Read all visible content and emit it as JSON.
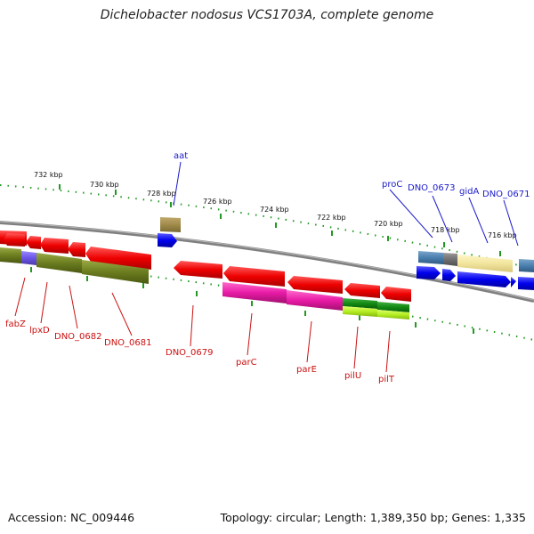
{
  "title": "Dichelobacter nodosus VCS1703A, complete genome",
  "footer": {
    "accession": "Accession: NC_009446",
    "summary": "Topology: circular; Length: 1,389,350 bp; Genes: 1,335"
  },
  "ticks": [
    "732 kbp",
    "730 kbp",
    "728 kbp",
    "726 kbp",
    "724 kbp",
    "722 kbp",
    "720 kbp",
    "718 kbp",
    "716 kbp"
  ],
  "colors": {
    "backbone": "#888888",
    "tick": "#229922",
    "forward_label": "#1a1acc",
    "reverse_label": "#cc1111"
  },
  "genes_forward": [
    {
      "name": "aat",
      "color": "#1a1aee"
    },
    {
      "name": "proC",
      "color": "#1a1aee"
    },
    {
      "name": "DNO_0673",
      "color": "#1a1aee"
    },
    {
      "name": "gidA",
      "color": "#1a1aee"
    },
    {
      "name": "DNO_0671",
      "color": "#1a1aee"
    }
  ],
  "genes_reverse": [
    {
      "name": "fabZ",
      "color": "#ee1111"
    },
    {
      "name": "lpxD",
      "color": "#ee1111"
    },
    {
      "name": "DNO_0682",
      "color": "#ee1111"
    },
    {
      "name": "DNO_0681",
      "color": "#ee1111"
    },
    {
      "name": "DNO_0679",
      "color": "#ee1111"
    },
    {
      "name": "parC",
      "color": "#ee1111"
    },
    {
      "name": "parE",
      "color": "#ee1111"
    },
    {
      "name": "pilU",
      "color": "#ee1111"
    },
    {
      "name": "pilT",
      "color": "#ee1111"
    }
  ]
}
